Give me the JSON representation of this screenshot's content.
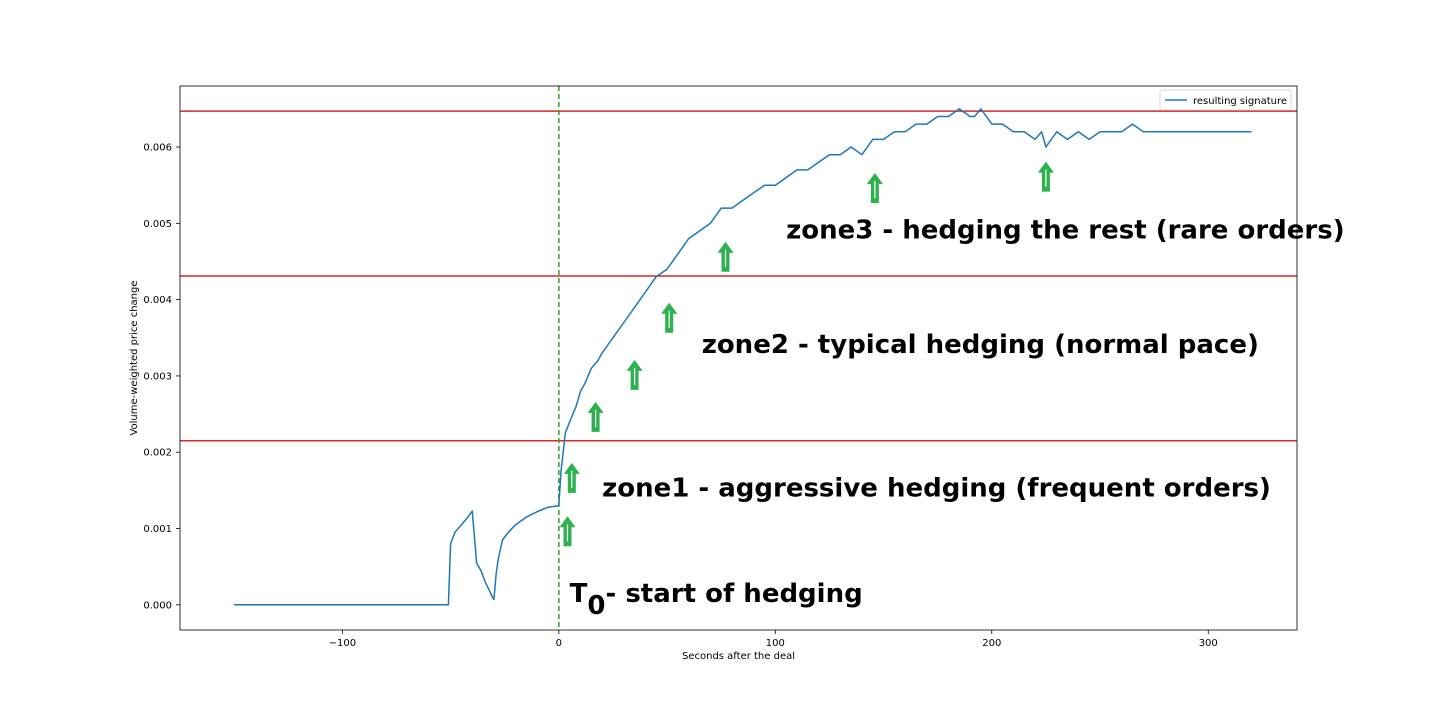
{
  "chart_data": {
    "type": "line",
    "xlabel": "Seconds after the deal",
    "ylabel": "Volume-weighted price change",
    "xlim": [
      -175,
      341
    ],
    "ylim": [
      -0.00033,
      0.0068
    ],
    "xticks": [
      -100,
      0,
      100,
      200,
      300
    ],
    "xtick_labels": [
      "−100",
      "0",
      "100",
      "200",
      "300"
    ],
    "yticks": [
      0.0,
      0.001,
      0.002,
      0.003,
      0.004,
      0.005,
      0.006
    ],
    "ytick_labels": [
      "0.000",
      "0.001",
      "0.002",
      "0.003",
      "0.004",
      "0.005",
      "0.006"
    ],
    "grid": false,
    "legend_position": "top-right",
    "series": [
      {
        "name": "resulting signature",
        "color": "#1f77b4",
        "x": [
          -150,
          -100,
          -51,
          -50,
          -48,
          -45,
          -42,
          -40,
          -39,
          -38,
          -36,
          -34,
          -32,
          -31,
          -30,
          -29,
          -28,
          -26,
          -24,
          -20,
          -15,
          -10,
          -5,
          0,
          1,
          2,
          3,
          5,
          8,
          10,
          12,
          15,
          18,
          20,
          25,
          30,
          35,
          40,
          45,
          50,
          55,
          60,
          65,
          70,
          75,
          80,
          85,
          90,
          95,
          100,
          105,
          110,
          115,
          120,
          125,
          130,
          135,
          140,
          145,
          150,
          155,
          160,
          165,
          170,
          175,
          180,
          185,
          190,
          192,
          195,
          200,
          205,
          210,
          215,
          220,
          223,
          225,
          230,
          235,
          240,
          245,
          250,
          255,
          260,
          265,
          270,
          280,
          290,
          300,
          310,
          320
        ],
        "y": [
          0.0,
          0.0,
          0.0,
          0.0008,
          0.00095,
          0.00105,
          0.00115,
          0.00123,
          0.0009,
          0.00055,
          0.00045,
          0.0003,
          0.00018,
          0.00012,
          7e-05,
          0.0004,
          0.0006,
          0.00085,
          0.00093,
          0.00105,
          0.00115,
          0.00122,
          0.00128,
          0.0013,
          0.00175,
          0.002,
          0.00225,
          0.0024,
          0.0026,
          0.0028,
          0.0029,
          0.0031,
          0.0032,
          0.0033,
          0.0035,
          0.0037,
          0.0039,
          0.0041,
          0.0043,
          0.0044,
          0.0046,
          0.0048,
          0.0049,
          0.005,
          0.0052,
          0.0052,
          0.0053,
          0.0054,
          0.0055,
          0.0055,
          0.0056,
          0.0057,
          0.0057,
          0.0058,
          0.0059,
          0.0059,
          0.006,
          0.0059,
          0.0061,
          0.0061,
          0.0062,
          0.0062,
          0.0063,
          0.0063,
          0.0064,
          0.0064,
          0.0065,
          0.0064,
          0.0064,
          0.0065,
          0.0063,
          0.0063,
          0.0062,
          0.0062,
          0.0061,
          0.0062,
          0.006,
          0.0062,
          0.0061,
          0.0062,
          0.0061,
          0.0062,
          0.0062,
          0.0062,
          0.0063,
          0.0062,
          0.0062,
          0.0062,
          0.0062,
          0.0062,
          0.0062
        ]
      }
    ],
    "hlines": [
      {
        "y": 0.00647,
        "color": "#d62728"
      },
      {
        "y": 0.00431,
        "color": "#d62728"
      },
      {
        "y": 0.00215,
        "color": "#d62728"
      }
    ],
    "vlines": [
      {
        "x": 0,
        "color": "#2ca02c",
        "style": "dashed"
      }
    ],
    "arrows": {
      "color": "#2eb14f",
      "x": [
        4,
        6,
        17,
        35,
        51,
        77,
        146,
        225
      ],
      "y": [
        0.00095,
        0.00165,
        0.00245,
        0.003,
        0.00375,
        0.00455,
        0.00545,
        0.0056
      ]
    },
    "annotations": [
      {
        "text": "zone3 - hedging the rest (rare orders)",
        "x": 105,
        "y": 0.0048
      },
      {
        "text": "zone2 - typical hedging (normal pace)",
        "x": 66,
        "y": 0.0033
      },
      {
        "text": "zone1 - aggressive hedging (frequent orders)",
        "x": 20,
        "y": 0.00142
      },
      {
        "text_main": "T",
        "text_sub": "0",
        "text_rest": "- start of hedging",
        "x": 5,
        "y": 0.0
      }
    ]
  }
}
